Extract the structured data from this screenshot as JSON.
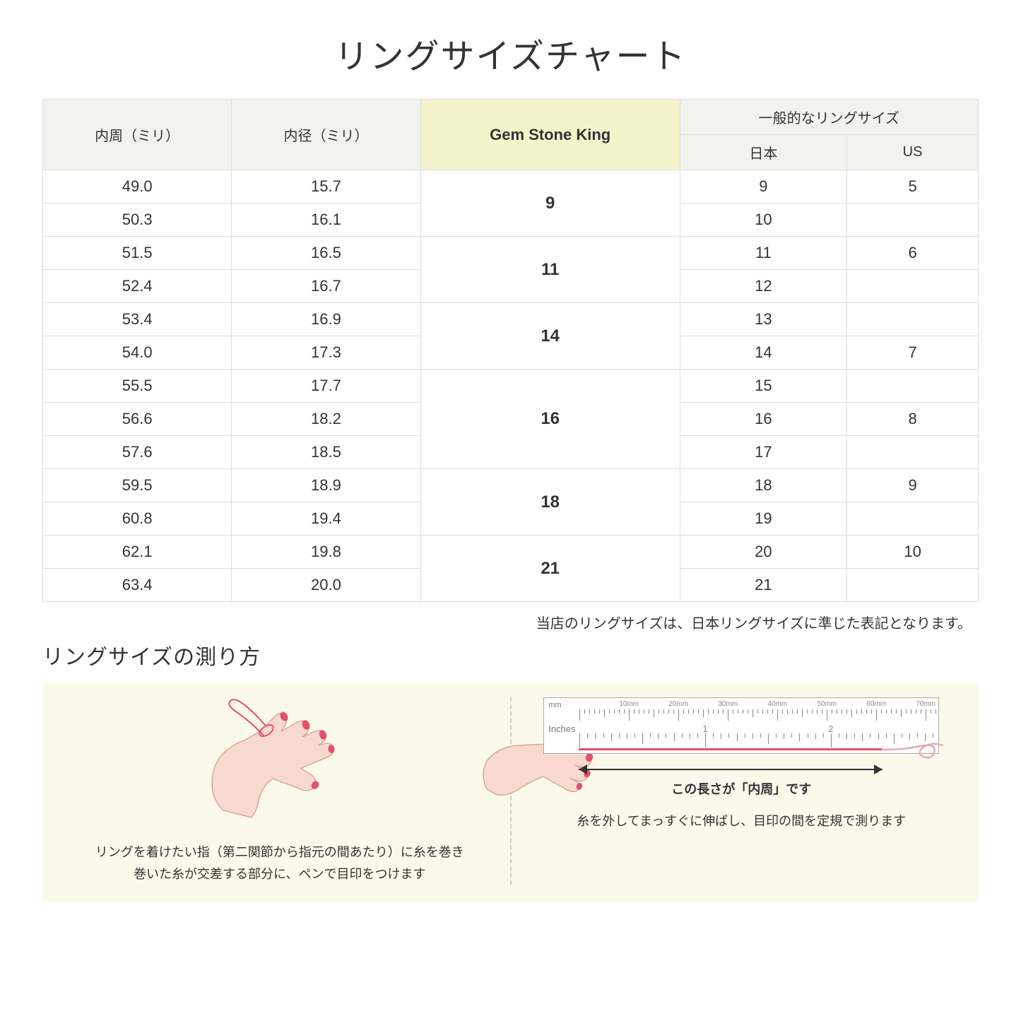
{
  "title": "リングサイズチャート",
  "table": {
    "headers": {
      "col1": "内周（ミリ）",
      "col2": "内径（ミリ）",
      "col3": "Gem Stone King",
      "col4_group": "一般的なリングサイズ",
      "col4a": "日本",
      "col4b": "US"
    },
    "header_bg": "#f2f2ee",
    "gsk_bg": "#f4f3cc",
    "border_color": "#dddddd",
    "rows": [
      {
        "c": "49.0",
        "d": "15.7",
        "jp": "9",
        "us": "5"
      },
      {
        "c": "50.3",
        "d": "16.1",
        "jp": "10",
        "us": ""
      },
      {
        "c": "51.5",
        "d": "16.5",
        "jp": "11",
        "us": "6"
      },
      {
        "c": "52.4",
        "d": "16.7",
        "jp": "12",
        "us": ""
      },
      {
        "c": "53.4",
        "d": "16.9",
        "jp": "13",
        "us": ""
      },
      {
        "c": "54.0",
        "d": "17.3",
        "jp": "14",
        "us": "7"
      },
      {
        "c": "55.5",
        "d": "17.7",
        "jp": "15",
        "us": ""
      },
      {
        "c": "56.6",
        "d": "18.2",
        "jp": "16",
        "us": "8"
      },
      {
        "c": "57.6",
        "d": "18.5",
        "jp": "17",
        "us": ""
      },
      {
        "c": "59.5",
        "d": "18.9",
        "jp": "18",
        "us": "9"
      },
      {
        "c": "60.8",
        "d": "19.4",
        "jp": "19",
        "us": ""
      },
      {
        "c": "62.1",
        "d": "19.8",
        "jp": "20",
        "us": "10"
      },
      {
        "c": "63.4",
        "d": "20.0",
        "jp": "21",
        "us": ""
      }
    ],
    "gsk_merges": [
      {
        "start": 0,
        "span": 2,
        "value": "9"
      },
      {
        "start": 2,
        "span": 2,
        "value": "11"
      },
      {
        "start": 4,
        "span": 2,
        "value": "14"
      },
      {
        "start": 6,
        "span": 3,
        "value": "16"
      },
      {
        "start": 9,
        "span": 2,
        "value": "18"
      },
      {
        "start": 11,
        "span": 2,
        "value": "21"
      }
    ]
  },
  "table_note": "当店のリングサイズは、日本リングサイズに準じた表記となります。",
  "howto": {
    "title": "リングサイズの測り方",
    "panel_bg": "#fbf9e9",
    "left_caption_line1": "リングを着けたい指（第二関節から指元の間あたり）に糸を巻き",
    "left_caption_line2": "巻いた糸が交差する部分に、ペンで目印をつけます",
    "right_arrow_caption": "この長さが「内周」です",
    "right_caption": "糸を外してまっすぐに伸ばし、目印の間を定規で測ります",
    "hand_skin": "#f8d9cf",
    "hand_outline": "#d9a79b",
    "nail_color": "#e3506a",
    "thread_color": "#e3506a",
    "ruler": {
      "bg": "#ffffff",
      "border": "#aaaaaa",
      "tick_color": "#888888",
      "mm_label": "mm",
      "inch_label": "Inches",
      "mm_marks": [
        "10mm",
        "20mm",
        "30mm",
        "40mm",
        "50mm",
        "60mm",
        "70mm"
      ],
      "inch_marks": [
        "1",
        "2"
      ]
    }
  }
}
